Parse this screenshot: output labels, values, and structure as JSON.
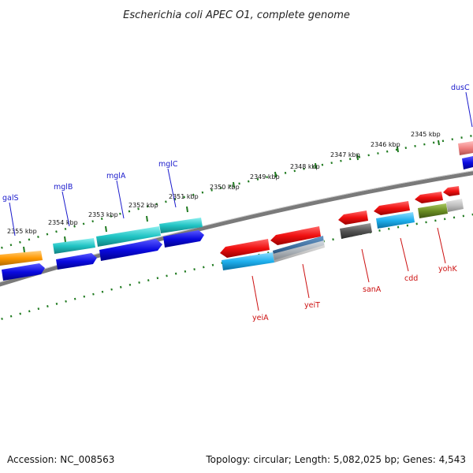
{
  "title": "Escherichia coli APEC O1, complete genome",
  "footer": {
    "accession": "Accession: NC_008563",
    "summary": "Topology: circular; Length: 5,082,025 bp; Genes: 4,543"
  },
  "ticks": [
    "2345 kbp",
    "2346 kbp",
    "2347 kbp",
    "2348 kbp",
    "2349 kbp",
    "2350 kbp",
    "2351 kbp",
    "2352 kbp",
    "2353 kbp",
    "2354 kbp",
    "2355 kbp"
  ],
  "genes_forward": [
    "dusC",
    "mglC",
    "mglA",
    "mglB",
    "galS"
  ],
  "genes_reverse": [
    "yohK",
    "cdd",
    "sanA",
    "yeiT",
    "yeiA"
  ],
  "colors": {
    "backbone": "#808080",
    "tick": "#1f7a1f",
    "gene_forward": "#1010dd",
    "gene_reverse": "#ee1111",
    "cds_teal": "#22c4c4",
    "cds_orange": "#ff9900",
    "cds_sky": "#1fb6ee",
    "cds_gray": "#666666",
    "cds_olive": "#6b8e23",
    "cds_pink": "#f08080",
    "label_forward": "#1a1acc",
    "label_reverse": "#cc1111"
  }
}
